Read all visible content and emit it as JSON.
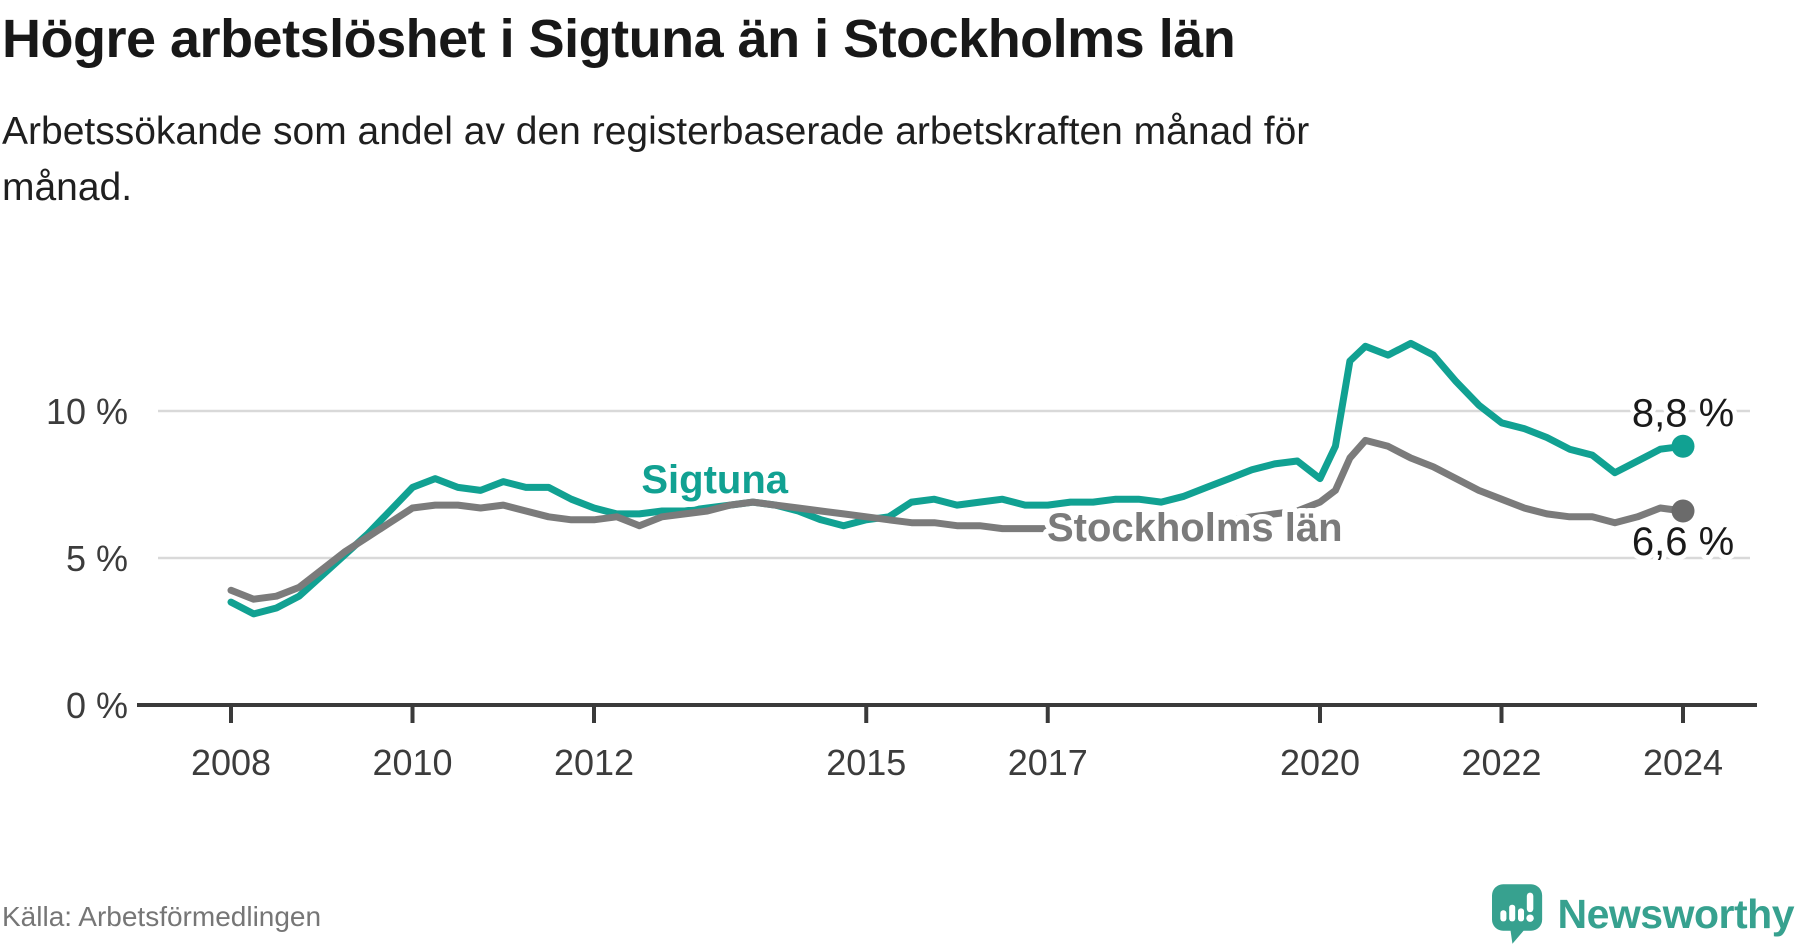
{
  "header": {
    "title": "Högre arbetslöshet i Sigtuna än i Stockholms län",
    "subtitle": "Arbetssökande som andel av den registerbaserade arbetskraften månad för\nmånad."
  },
  "footer": {
    "source": "Källa: Arbetsförmedlingen",
    "brand": "Newsworthy"
  },
  "colors": {
    "accent_teal": "#11a192",
    "line_gray": "#7b7b7b",
    "dot_gray": "#6b6b6b",
    "axis_text": "#3c3c3c",
    "axis_line": "#3a3a3a",
    "gridline": "#d9d9d9",
    "value_label": "#1a1a1a",
    "brand_teal": "#37a18f"
  },
  "chart_data": {
    "type": "line",
    "title": "Högre arbetslöshet i Sigtuna än i Stockholms län",
    "xlabel": "",
    "ylabel": "",
    "unit": "%",
    "grid": "horizontal",
    "legend_position": "inline-labels",
    "xlim": [
      2008,
      2024.6
    ],
    "ylim": [
      0,
      13.5
    ],
    "x_ticks": [
      {
        "value": 2008,
        "label": "2008"
      },
      {
        "value": 2010,
        "label": "2010"
      },
      {
        "value": 2012,
        "label": "2012"
      },
      {
        "value": 2015,
        "label": "2015"
      },
      {
        "value": 2017,
        "label": "2017"
      },
      {
        "value": 2020,
        "label": "2020"
      },
      {
        "value": 2022,
        "label": "2022"
      },
      {
        "value": 2024,
        "label": "2024"
      }
    ],
    "y_ticks": [
      {
        "value": 0,
        "label": "0 %",
        "gridline": false
      },
      {
        "value": 5,
        "label": "5 %",
        "gridline": true
      },
      {
        "value": 10,
        "label": "10 %",
        "gridline": true
      }
    ],
    "series": [
      {
        "name": "Sigtuna",
        "color": "#11a192",
        "dot_color": "#11a192",
        "end_value": 8.8,
        "end_label": "8,8 %",
        "end_label_side": "above",
        "inline_label": {
          "text": "Sigtuna",
          "x": 2013.33,
          "y": 7.69
        },
        "points": [
          [
            2008.0,
            3.5
          ],
          [
            2008.25,
            3.1
          ],
          [
            2008.5,
            3.3
          ],
          [
            2008.75,
            3.7
          ],
          [
            2009.0,
            4.4
          ],
          [
            2009.25,
            5.1
          ],
          [
            2009.5,
            5.8
          ],
          [
            2009.75,
            6.6
          ],
          [
            2010.0,
            7.4
          ],
          [
            2010.25,
            7.7
          ],
          [
            2010.5,
            7.4
          ],
          [
            2010.75,
            7.3
          ],
          [
            2011.0,
            7.6
          ],
          [
            2011.25,
            7.4
          ],
          [
            2011.5,
            7.4
          ],
          [
            2011.75,
            7.0
          ],
          [
            2012.0,
            6.7
          ],
          [
            2012.25,
            6.5
          ],
          [
            2012.5,
            6.5
          ],
          [
            2012.75,
            6.6
          ],
          [
            2013.0,
            6.6
          ],
          [
            2013.25,
            6.7
          ],
          [
            2013.5,
            6.8
          ],
          [
            2013.75,
            6.9
          ],
          [
            2014.0,
            6.8
          ],
          [
            2014.25,
            6.6
          ],
          [
            2014.5,
            6.3
          ],
          [
            2014.75,
            6.1
          ],
          [
            2015.0,
            6.3
          ],
          [
            2015.25,
            6.4
          ],
          [
            2015.5,
            6.9
          ],
          [
            2015.75,
            7.0
          ],
          [
            2016.0,
            6.8
          ],
          [
            2016.25,
            6.9
          ],
          [
            2016.5,
            7.0
          ],
          [
            2016.75,
            6.8
          ],
          [
            2017.0,
            6.8
          ],
          [
            2017.25,
            6.9
          ],
          [
            2017.5,
            6.9
          ],
          [
            2017.75,
            7.0
          ],
          [
            2018.0,
            7.0
          ],
          [
            2018.25,
            6.9
          ],
          [
            2018.5,
            7.1
          ],
          [
            2018.75,
            7.4
          ],
          [
            2019.0,
            7.7
          ],
          [
            2019.25,
            8.0
          ],
          [
            2019.5,
            8.2
          ],
          [
            2019.75,
            8.3
          ],
          [
            2020.0,
            7.7
          ],
          [
            2020.17,
            8.8
          ],
          [
            2020.33,
            11.7
          ],
          [
            2020.5,
            12.2
          ],
          [
            2020.75,
            11.9
          ],
          [
            2021.0,
            12.3
          ],
          [
            2021.25,
            11.9
          ],
          [
            2021.5,
            11.0
          ],
          [
            2021.75,
            10.2
          ],
          [
            2022.0,
            9.6
          ],
          [
            2022.25,
            9.4
          ],
          [
            2022.5,
            9.1
          ],
          [
            2022.75,
            8.7
          ],
          [
            2023.0,
            8.5
          ],
          [
            2023.25,
            7.9
          ],
          [
            2023.5,
            8.3
          ],
          [
            2023.75,
            8.7
          ],
          [
            2024.0,
            8.8
          ]
        ]
      },
      {
        "name": "Stockholms län",
        "color": "#7b7b7b",
        "dot_color": "#6b6b6b",
        "end_value": 6.6,
        "end_label": "6,6 %",
        "end_label_side": "below",
        "inline_label": {
          "text": "Stockholms län",
          "x": 2018.62,
          "y": 6.05
        },
        "points": [
          [
            2008.0,
            3.9
          ],
          [
            2008.25,
            3.6
          ],
          [
            2008.5,
            3.7
          ],
          [
            2008.75,
            4.0
          ],
          [
            2009.0,
            4.6
          ],
          [
            2009.25,
            5.2
          ],
          [
            2009.5,
            5.7
          ],
          [
            2009.75,
            6.2
          ],
          [
            2010.0,
            6.7
          ],
          [
            2010.25,
            6.8
          ],
          [
            2010.5,
            6.8
          ],
          [
            2010.75,
            6.7
          ],
          [
            2011.0,
            6.8
          ],
          [
            2011.25,
            6.6
          ],
          [
            2011.5,
            6.4
          ],
          [
            2011.75,
            6.3
          ],
          [
            2012.0,
            6.3
          ],
          [
            2012.25,
            6.4
          ],
          [
            2012.5,
            6.1
          ],
          [
            2012.75,
            6.4
          ],
          [
            2013.0,
            6.5
          ],
          [
            2013.25,
            6.6
          ],
          [
            2013.5,
            6.8
          ],
          [
            2013.75,
            6.9
          ],
          [
            2014.0,
            6.8
          ],
          [
            2014.25,
            6.7
          ],
          [
            2014.5,
            6.6
          ],
          [
            2014.75,
            6.5
          ],
          [
            2015.0,
            6.4
          ],
          [
            2015.25,
            6.3
          ],
          [
            2015.5,
            6.2
          ],
          [
            2015.75,
            6.2
          ],
          [
            2016.0,
            6.1
          ],
          [
            2016.25,
            6.1
          ],
          [
            2016.5,
            6.0
          ],
          [
            2016.75,
            6.0
          ],
          [
            2017.0,
            6.0
          ],
          [
            2017.25,
            6.0
          ],
          [
            2017.5,
            6.1
          ],
          [
            2017.75,
            6.1
          ],
          [
            2018.0,
            6.2
          ],
          [
            2018.25,
            6.1
          ],
          [
            2018.5,
            6.2
          ],
          [
            2018.75,
            6.2
          ],
          [
            2019.0,
            6.3
          ],
          [
            2019.25,
            6.4
          ],
          [
            2019.5,
            6.5
          ],
          [
            2019.75,
            6.6
          ],
          [
            2020.0,
            6.9
          ],
          [
            2020.17,
            7.3
          ],
          [
            2020.33,
            8.4
          ],
          [
            2020.5,
            9.0
          ],
          [
            2020.75,
            8.8
          ],
          [
            2021.0,
            8.4
          ],
          [
            2021.25,
            8.1
          ],
          [
            2021.5,
            7.7
          ],
          [
            2021.75,
            7.3
          ],
          [
            2022.0,
            7.0
          ],
          [
            2022.25,
            6.7
          ],
          [
            2022.5,
            6.5
          ],
          [
            2022.75,
            6.4
          ],
          [
            2023.0,
            6.4
          ],
          [
            2023.25,
            6.2
          ],
          [
            2023.5,
            6.4
          ],
          [
            2023.75,
            6.7
          ],
          [
            2024.0,
            6.6
          ]
        ]
      }
    ]
  }
}
